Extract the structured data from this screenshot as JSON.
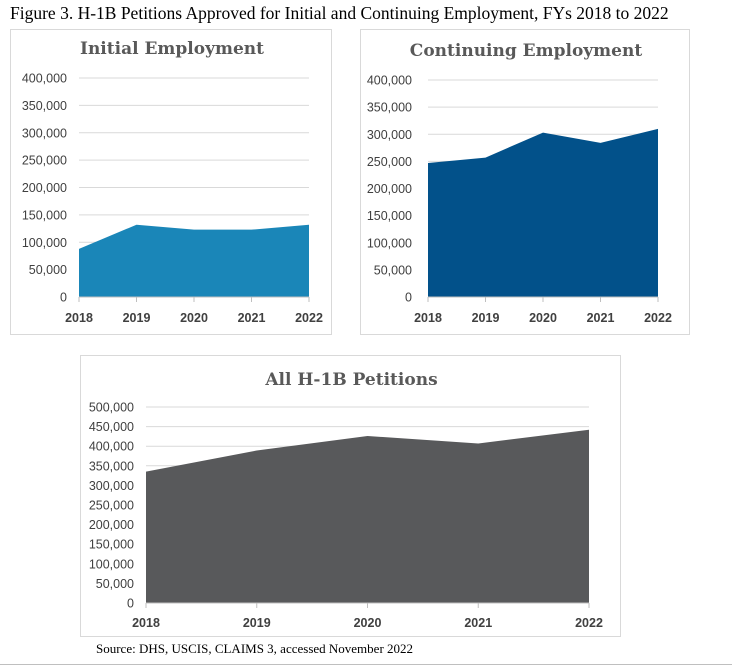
{
  "figure": {
    "title": "Figure 3. H-1B Petitions Approved for Initial and Continuing Employment, FYs 2018 to 2022",
    "source": "Source: DHS, USCIS, CLAIMS 3, accessed November 2022"
  },
  "chart_data": [
    {
      "type": "area",
      "title": "Initial Employment",
      "x": [
        "2018",
        "2019",
        "2020",
        "2021",
        "2022"
      ],
      "values": [
        88000,
        132000,
        123000,
        123000,
        132000
      ],
      "ylim": [
        0,
        400000
      ],
      "yticks": [
        "0",
        "50,000",
        "100,000",
        "150,000",
        "200,000",
        "250,000",
        "300,000",
        "350,000",
        "400,000"
      ],
      "grid": true,
      "legend": "none",
      "color": "#1a86b8"
    },
    {
      "type": "area",
      "title": "Continuing Employment",
      "x": [
        "2018",
        "2019",
        "2020",
        "2021",
        "2022"
      ],
      "values": [
        247000,
        257000,
        303000,
        284000,
        310000
      ],
      "ylim": [
        0,
        400000
      ],
      "yticks": [
        "0",
        "50,000",
        "100,000",
        "150,000",
        "200,000",
        "250,000",
        "300,000",
        "350,000",
        "400,000"
      ],
      "grid": true,
      "legend": "none",
      "color": "#02518a"
    },
    {
      "type": "area",
      "title": "All H-1B Petitions",
      "x": [
        "2018",
        "2019",
        "2020",
        "2021",
        "2022"
      ],
      "values": [
        335000,
        389000,
        426000,
        407000,
        442000
      ],
      "ylim": [
        0,
        500000
      ],
      "yticks": [
        "0",
        "50,000",
        "100,000",
        "150,000",
        "200,000",
        "250,000",
        "300,000",
        "350,000",
        "400,000",
        "450,000",
        "500,000"
      ],
      "grid": true,
      "legend": "none",
      "color": "#58595b"
    }
  ]
}
